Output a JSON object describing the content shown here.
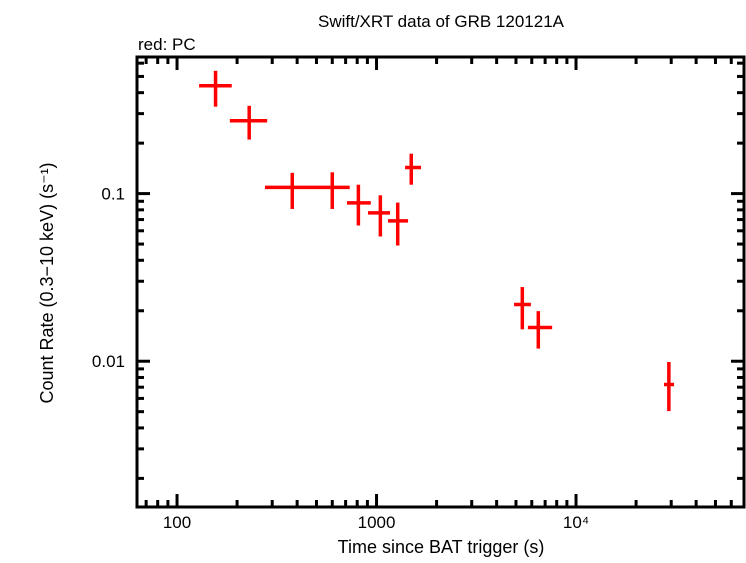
{
  "chart_data": {
    "type": "scatter",
    "title": "Swift/XRT data of GRB 120121A",
    "legend_note": "red: PC",
    "xlabel": "Time since BAT trigger (s)",
    "ylabel": "Count Rate (0.3−10 keV) (s⁻¹)",
    "xscale": "log",
    "yscale": "log",
    "xlim": [
      63,
      69500
    ],
    "ylim": [
      0.00135,
      0.653
    ],
    "grid": false,
    "x_tick_labels": [
      {
        "value": 100,
        "label": "100"
      },
      {
        "value": 1000,
        "label": "1000"
      },
      {
        "value": 10000,
        "label": "10⁴"
      }
    ],
    "y_tick_labels": [
      {
        "value": 0.1,
        "label": "0.1"
      },
      {
        "value": 0.01,
        "label": "0.01"
      }
    ],
    "colors": {
      "PC": "#ff0000",
      "axis": "#000000"
    },
    "series": [
      {
        "name": "PC",
        "color": "#ff0000",
        "points": [
          {
            "t": 156,
            "t_lo": 129,
            "t_hi": 188,
            "rate": 0.44,
            "rate_lo": 0.33,
            "rate_hi": 0.54
          },
          {
            "t": 230,
            "t_lo": 184,
            "t_hi": 283,
            "rate": 0.272,
            "rate_lo": 0.21,
            "rate_hi": 0.334
          },
          {
            "t": 378,
            "t_lo": 276,
            "t_hi": 585,
            "rate": 0.109,
            "rate_lo": 0.081,
            "rate_hi": 0.133
          },
          {
            "t": 600,
            "t_lo": 585,
            "t_hi": 734,
            "rate": 0.109,
            "rate_lo": 0.081,
            "rate_hi": 0.134
          },
          {
            "t": 811,
            "t_lo": 711,
            "t_hi": 936,
            "rate": 0.088,
            "rate_lo": 0.0645,
            "rate_hi": 0.113
          },
          {
            "t": 1045,
            "t_lo": 906,
            "t_hi": 1169,
            "rate": 0.0767,
            "rate_lo": 0.0555,
            "rate_hi": 0.0977
          },
          {
            "t": 1277,
            "t_lo": 1142,
            "t_hi": 1439,
            "rate": 0.0688,
            "rate_lo": 0.049,
            "rate_hi": 0.0884
          },
          {
            "t": 1493,
            "t_lo": 1390,
            "t_hi": 1671,
            "rate": 0.143,
            "rate_lo": 0.113,
            "rate_hi": 0.173
          },
          {
            "t": 5380,
            "t_lo": 4890,
            "t_hi": 5940,
            "rate": 0.0218,
            "rate_lo": 0.0155,
            "rate_hi": 0.0277
          },
          {
            "t": 6470,
            "t_lo": 5740,
            "t_hi": 7590,
            "rate": 0.0159,
            "rate_lo": 0.0119,
            "rate_hi": 0.0199
          },
          {
            "t": 29200,
            "t_lo": 27600,
            "t_hi": 31000,
            "rate": 0.00726,
            "rate_lo": 0.00504,
            "rate_hi": 0.0099
          }
        ]
      }
    ]
  }
}
